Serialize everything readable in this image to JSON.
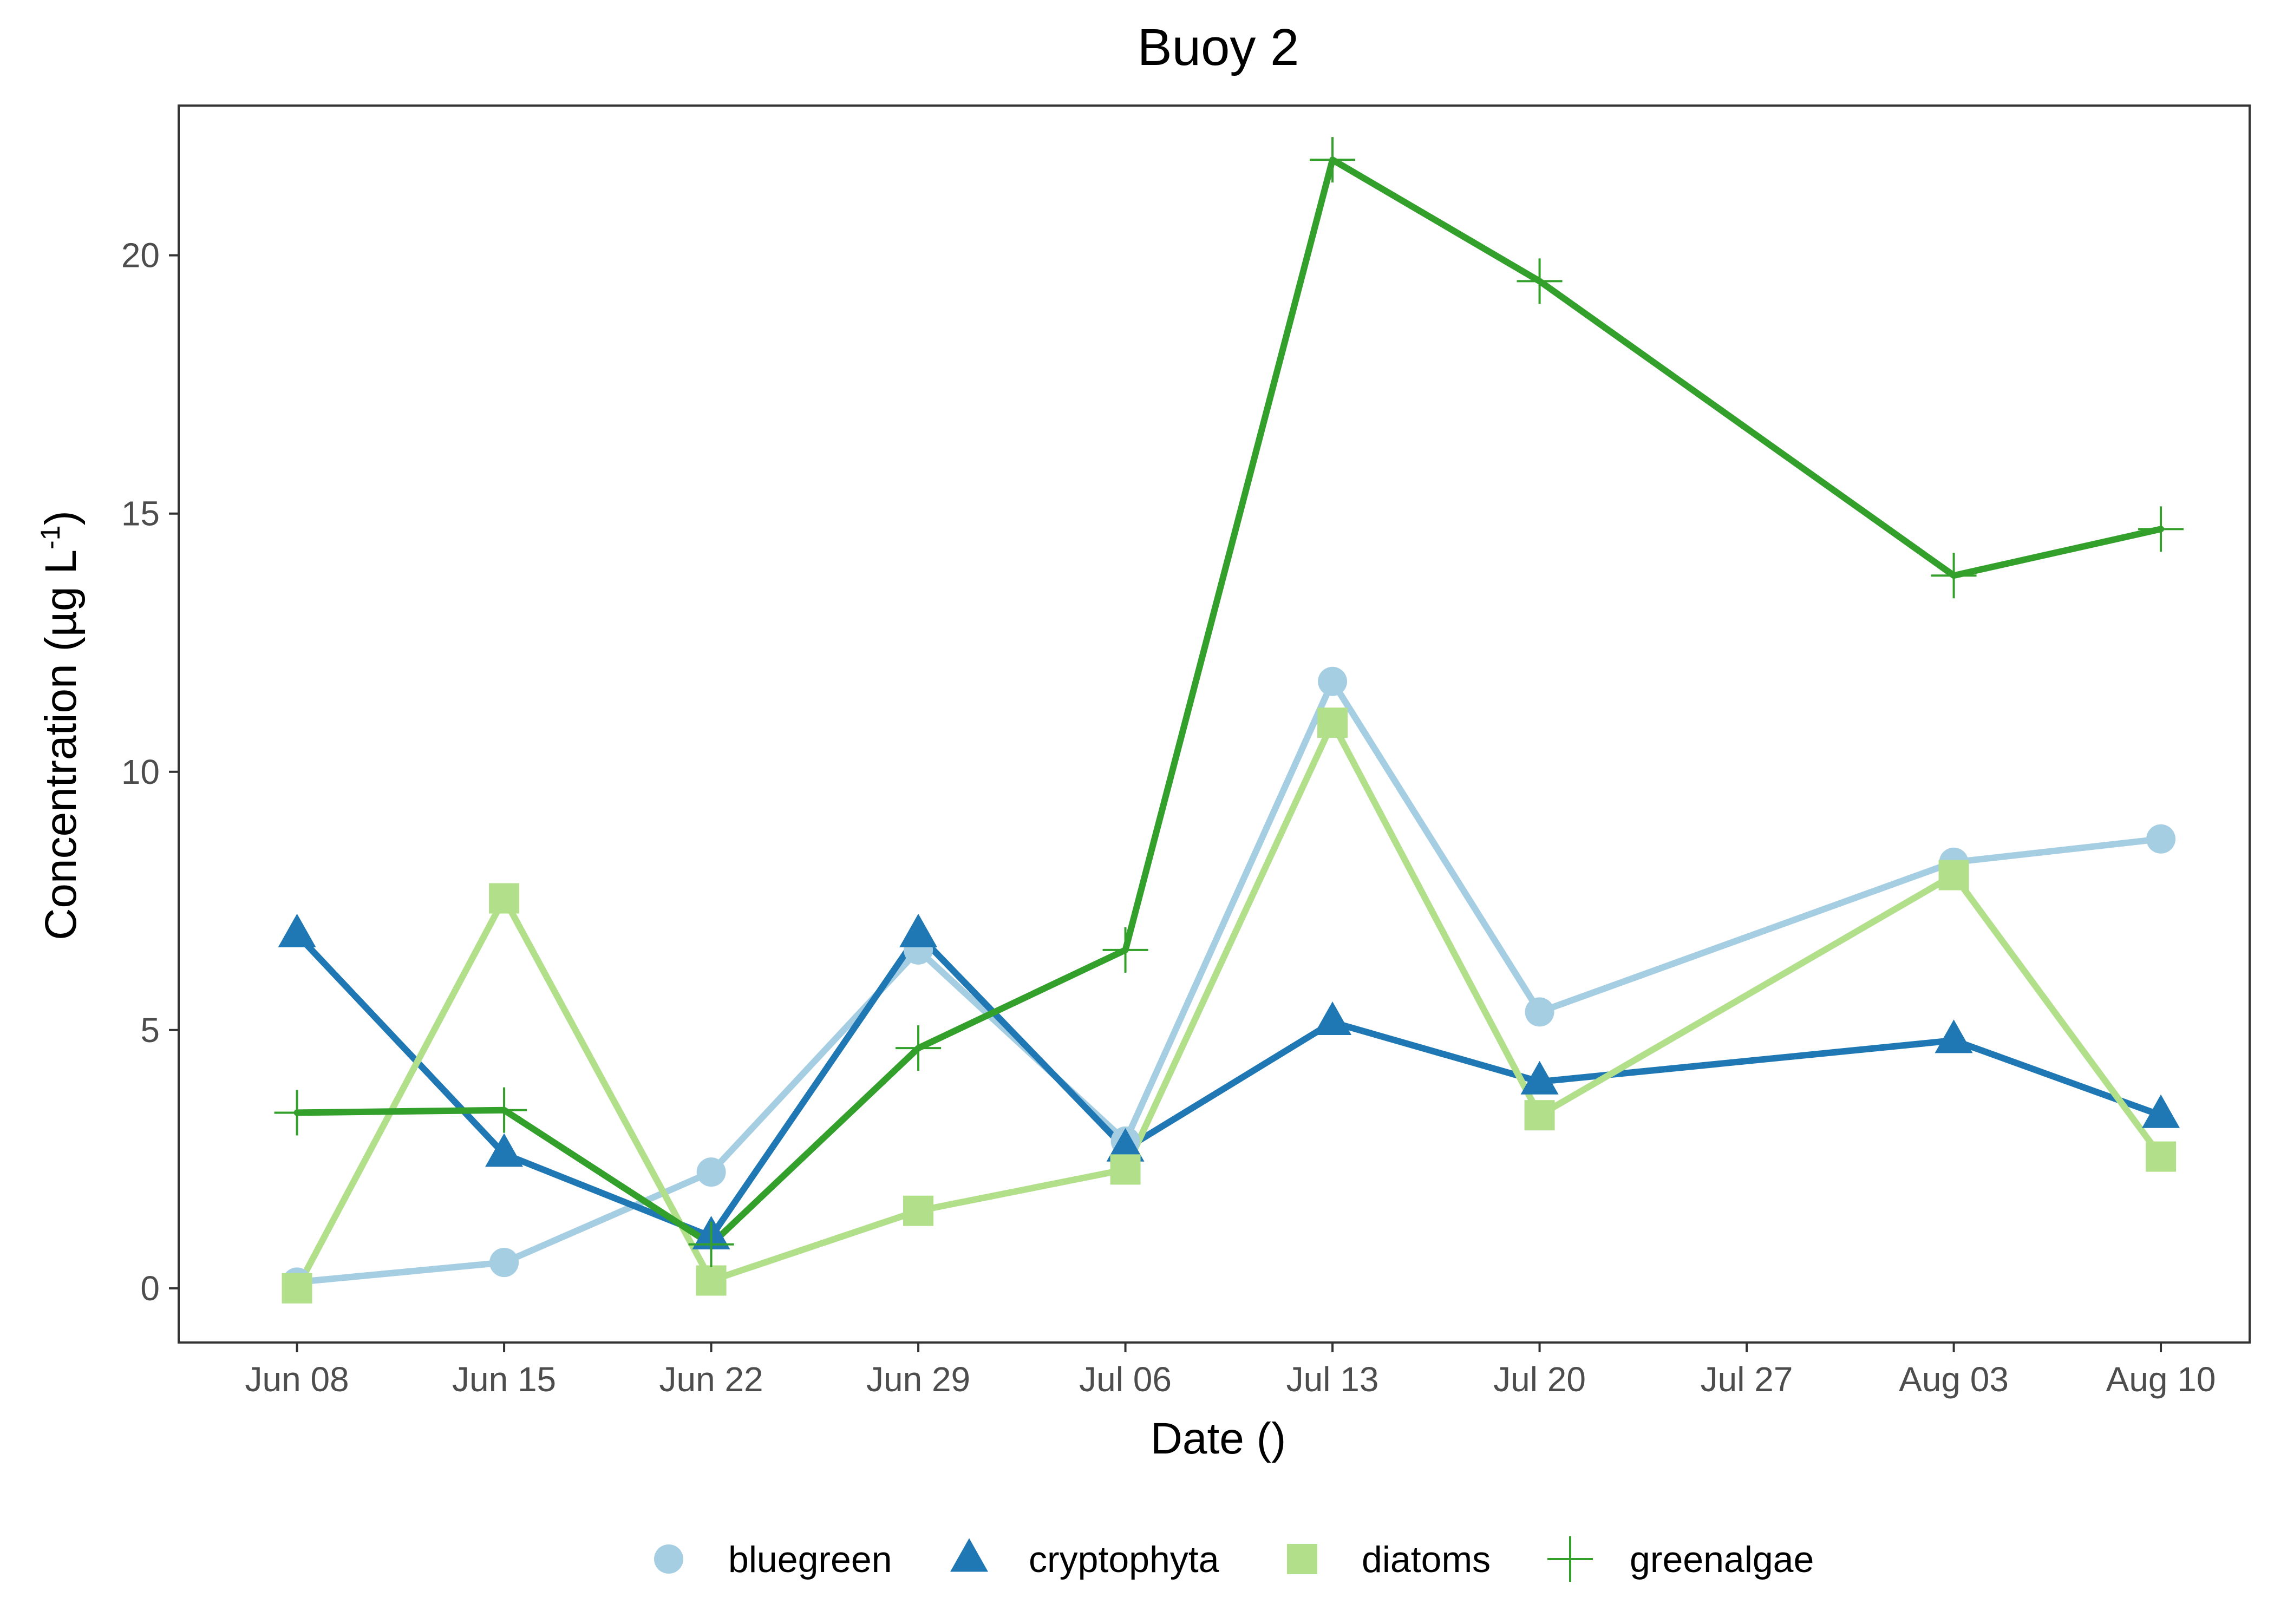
{
  "chart_data": {
    "type": "line",
    "title": "Buoy 2",
    "xlabel": "Date ()",
    "ylabel_main": "Concentration (µg L",
    "ylabel_sup": "-1",
    "ylabel_close": ")",
    "x": [
      "2023-06-08",
      "2023-06-15",
      "2023-06-22",
      "2023-06-29",
      "2023-07-06",
      "2023-07-13",
      "2023-07-20",
      "2023-08-03",
      "2023-08-10"
    ],
    "x_ticks": [
      "2023-06-08",
      "2023-06-15",
      "2023-06-22",
      "2023-06-29",
      "2023-07-06",
      "2023-07-13",
      "2023-07-20",
      "2023-07-27",
      "2023-08-03",
      "2023-08-10"
    ],
    "x_tick_labels": [
      "Jun 08",
      "Jun 15",
      "Jun 22",
      "Jun 29",
      "Jul 06",
      "Jul 13",
      "Jul 20",
      "Jul 27",
      "Aug 03",
      "Aug 10"
    ],
    "xlim": [
      "2023-06-04",
      "2023-08-13"
    ],
    "y_ticks": [
      0,
      5,
      10,
      15,
      20
    ],
    "y_tick_labels": [
      "0",
      "5",
      "10",
      "15",
      "20"
    ],
    "ylim": [
      -1.05,
      22.9
    ],
    "grid": false,
    "legend_position": "bottom",
    "series": [
      {
        "name": "bluegreen",
        "color": "#a6cee3",
        "marker": "circle",
        "values": [
          0.12,
          0.5,
          2.25,
          6.55,
          2.85,
          11.75,
          5.35,
          8.25,
          8.7
        ]
      },
      {
        "name": "cryptophyta",
        "color": "#1f78b4",
        "marker": "triangle",
        "values": [
          6.85,
          2.6,
          1.0,
          6.85,
          2.7,
          5.15,
          4.0,
          4.8,
          3.35
        ]
      },
      {
        "name": "diatoms",
        "color": "#b2df8a",
        "marker": "square",
        "values": [
          0.0,
          7.55,
          0.15,
          1.5,
          2.3,
          10.95,
          3.35,
          8.0,
          2.55
        ]
      },
      {
        "name": "greenalgae",
        "color": "#33a02c",
        "marker": "plus",
        "values": [
          3.4,
          3.45,
          0.85,
          4.65,
          6.55,
          21.85,
          19.5,
          13.8,
          14.7
        ]
      }
    ]
  }
}
